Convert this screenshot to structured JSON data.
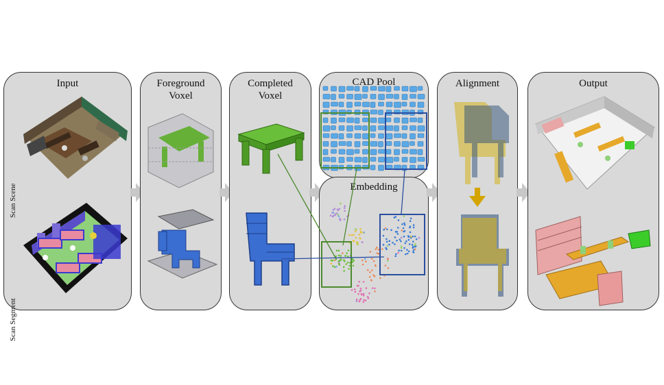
{
  "panels": {
    "input": {
      "title": "Input",
      "scan_scene_label": "Scan Scene",
      "scan_segment_label": "Scan Segment"
    },
    "foreground": {
      "title_line1": "Foreground",
      "title_line2": "Voxel"
    },
    "completed": {
      "title_line1": "Completed",
      "title_line2": "Voxel"
    },
    "cad_pool": {
      "title": "CAD Pool"
    },
    "embedding": {
      "title": "Embedding"
    },
    "alignment": {
      "title": "Alignment"
    },
    "output": {
      "title": "Output"
    }
  },
  "colors": {
    "panel_bg": "#d9d9d9",
    "border": "#333333",
    "arrow": "#c8c8c8",
    "chair_blue": "#3a7bd5",
    "table_green": "#5aa02c",
    "cad_blue": "#5aa9e6",
    "align_yellow": "#d4b21c",
    "alignment_arrow": "#d4a500",
    "highlight_green": "#4c8a2e",
    "highlight_blue": "#2b4ea0",
    "output_table": "#e6a82a",
    "output_shelf": "#e8a6a6"
  }
}
